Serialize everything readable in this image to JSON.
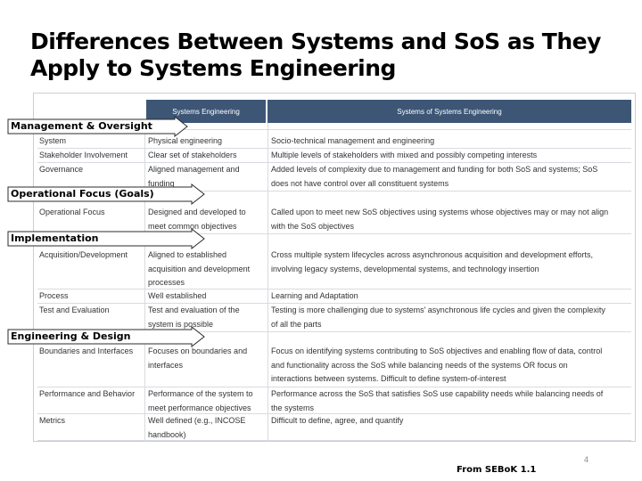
{
  "title": {
    "line1": "Differences Between Systems and SoS as They",
    "line2": "Apply to Systems Engineering"
  },
  "table": {
    "header": {
      "se": "Systems Engineering",
      "sose": "Systems of Systems Engineering"
    },
    "rows": [
      {
        "label": "System",
        "se": [
          "Physical engineering"
        ],
        "sose": [
          "Socio-technical management and engineering"
        ]
      },
      {
        "label": "Stakeholder Involvement",
        "se": [
          "Clear set of stakeholders"
        ],
        "sose": [
          "Multiple levels of stakeholders with mixed and possibly competing interests"
        ]
      },
      {
        "label": "Governance",
        "se": [
          "Aligned management and",
          "funding"
        ],
        "sose": [
          "Added levels of complexity due to management and funding for both SoS and systems; SoS",
          "does not have control over all constituent systems"
        ]
      },
      {
        "label": "Operational Focus",
        "se": [
          "Designed and developed to",
          "meet common objectives"
        ],
        "sose": [
          "Called upon to meet new SoS objectives using systems whose objectives may or may not align",
          "with the SoS objectives"
        ]
      },
      {
        "label": "Acquisition/Development",
        "se": [
          "Aligned to established",
          "acquisition and development",
          "processes"
        ],
        "sose": [
          "Cross multiple system lifecycles across asynchronous acquisition and development efforts,",
          "involving legacy systems, developmental systems, and technology insertion"
        ]
      },
      {
        "label": "Process",
        "se": [
          "Well established"
        ],
        "sose": [
          "Learning and Adaptation"
        ]
      },
      {
        "label": "Test and Evaluation",
        "se": [
          "Test and evaluation of the",
          "system is possible"
        ],
        "sose": [
          "Testing is more challenging due to systems' asynchronous life cycles and given the complexity",
          "of all the parts"
        ]
      },
      {
        "label": "Boundaries and Interfaces",
        "se": [
          "Focuses on boundaries and",
          "interfaces"
        ],
        "sose": [
          "Focus on identifying systems contributing to SoS objectives and enabling flow of data, control",
          "and functionality across the SoS while balancing needs of the systems OR focus on",
          "interactions between systems. Difficult to define system-of-interest"
        ]
      },
      {
        "label": "Performance and Behavior",
        "se": [
          "Performance of the system to",
          "meet performance objectives"
        ],
        "sose": [
          "Performance across the SoS that satisfies SoS use capability needs while balancing needs of",
          "the systems"
        ]
      },
      {
        "label": "Metrics",
        "se": [
          "Well defined (e.g., INCOSE",
          "handbook)"
        ],
        "sose": [
          "Difficult to define, agree, and quantify"
        ]
      }
    ]
  },
  "categories": [
    "Management & Oversight",
    "Operational Focus (Goals)",
    "Implementation",
    "Engineering & Design"
  ],
  "colors": {
    "header_bg": "#3d5676",
    "arrow_fill": "#ffffff",
    "arrow_stroke": "#2b2b2b"
  },
  "page_number": "4",
  "source": "From SEBoK 1.1"
}
